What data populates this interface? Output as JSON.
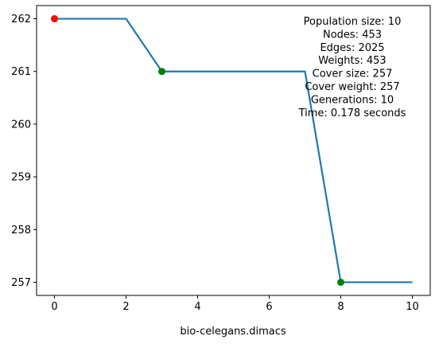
{
  "chart_data": {
    "type": "line",
    "xlabel": "bio-celegans.dimacs",
    "ylabel": "",
    "xlim": [
      -0.5,
      10.5
    ],
    "ylim": [
      256.75,
      262.25
    ],
    "x_ticks": [
      0,
      2,
      4,
      6,
      8,
      10
    ],
    "y_ticks": [
      257,
      258,
      259,
      260,
      261,
      262
    ],
    "grid": false,
    "legend": null,
    "series": [
      {
        "x": [
          0,
          1,
          2,
          3,
          4,
          5,
          6,
          7,
          8,
          9,
          10
        ],
        "values": [
          262,
          262,
          262,
          261,
          261,
          261,
          261,
          261,
          257,
          257,
          257
        ],
        "color": "#1f77b4"
      }
    ],
    "markers": [
      {
        "x": 0,
        "y": 262,
        "color": "#ff0000"
      },
      {
        "x": 3,
        "y": 261,
        "color": "#008000"
      },
      {
        "x": 8,
        "y": 257,
        "color": "#008000"
      }
    ],
    "annotation_lines": [
      "Population size: 10",
      "Nodes: 453",
      "Edges: 2025",
      "Weights: 453",
      "Cover size: 257",
      "Cover weight: 257",
      "Generations: 10",
      "Time: 0.178 seconds"
    ]
  }
}
